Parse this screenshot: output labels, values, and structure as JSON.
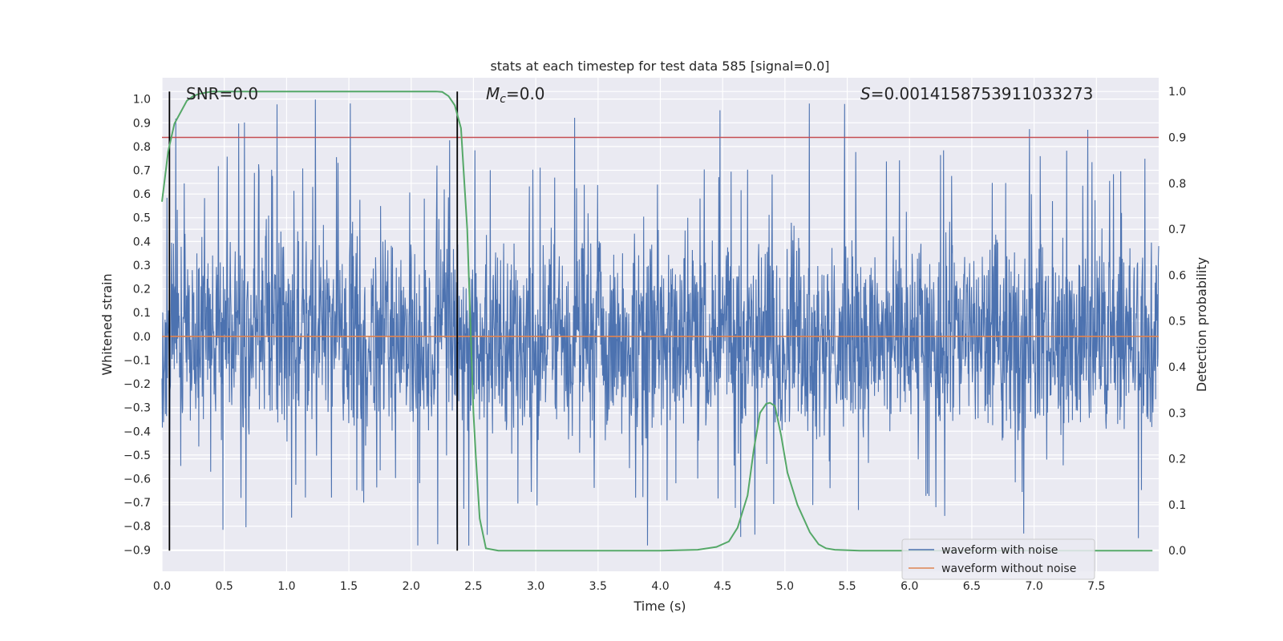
{
  "chart_data": {
    "type": "line",
    "title": "stats at each timestep for test data 585 [signal=0.0]",
    "xlabel": "Time (s)",
    "ylabel_left": "Whitened strain",
    "ylabel_right": "Detection probability",
    "xlim": [
      0,
      8
    ],
    "ylim_left": [
      -0.99,
      1.09
    ],
    "ylim_right": [
      -0.045,
      1.03
    ],
    "x_ticks": [
      "0.0",
      "0.5",
      "1.0",
      "1.5",
      "2.0",
      "2.5",
      "3.0",
      "3.5",
      "4.0",
      "4.5",
      "5.0",
      "5.5",
      "6.0",
      "6.5",
      "7.0",
      "7.5"
    ],
    "y_left_ticks": [
      "1.0",
      "0.9",
      "0.8",
      "0.7",
      "0.6",
      "0.5",
      "0.4",
      "0.3",
      "0.2",
      "0.1",
      "0.0",
      "−0.1",
      "−0.2",
      "−0.3",
      "−0.4",
      "−0.5",
      "−0.6",
      "−0.7",
      "−0.8",
      "−0.9"
    ],
    "y_right_ticks": [
      "1.0",
      "0.9",
      "0.8",
      "0.7",
      "0.6",
      "0.5",
      "0.4",
      "0.3",
      "0.2",
      "0.1",
      "0.0"
    ],
    "grid": true,
    "legend_position": "lower-right",
    "annotations": {
      "snr": "SNR=0.0",
      "mc_symbol": "M",
      "mc_sub": "c",
      "mc_value": "=0.0",
      "s_symbol": "S",
      "s_value": "=0.0014158753911033273"
    },
    "threshold_right": 0.9,
    "markers_x": [
      0.06,
      2.37
    ],
    "series": [
      {
        "name": "waveform with noise",
        "color": "#4c72b0",
        "axis": "left",
        "noise_band_low": -0.3,
        "noise_band_high": 0.3,
        "peak_max": 1.0,
        "peak_min": -0.9
      },
      {
        "name": "waveform without noise",
        "color": "#dd8452",
        "axis": "left",
        "x": [
          0,
          8
        ],
        "y": [
          0,
          0
        ]
      },
      {
        "name": "detection probability",
        "color": "#55a868",
        "axis": "right",
        "x": [
          0.0,
          0.05,
          0.1,
          0.15,
          0.2,
          0.25,
          0.3,
          0.4,
          0.6,
          1.0,
          1.5,
          2.0,
          2.2,
          2.25,
          2.3,
          2.35,
          2.4,
          2.45,
          2.5,
          2.52,
          2.55,
          2.6,
          2.7,
          3.0,
          3.5,
          4.0,
          4.3,
          4.45,
          4.55,
          4.62,
          4.7,
          4.75,
          4.8,
          4.85,
          4.88,
          4.92,
          4.97,
          5.02,
          5.1,
          5.2,
          5.27,
          5.33,
          5.4,
          5.6,
          6.0,
          7.0,
          7.95
        ],
        "y": [
          0.76,
          0.87,
          0.93,
          0.955,
          0.98,
          0.99,
          0.995,
          1.0,
          1.0,
          1.0,
          1.0,
          1.0,
          1.0,
          0.999,
          0.99,
          0.97,
          0.92,
          0.7,
          0.3,
          0.2,
          0.07,
          0.005,
          0.0,
          0.0,
          0.0,
          0.0,
          0.002,
          0.008,
          0.02,
          0.05,
          0.12,
          0.22,
          0.3,
          0.32,
          0.322,
          0.315,
          0.25,
          0.17,
          0.1,
          0.04,
          0.014,
          0.005,
          0.002,
          0.0,
          0.0,
          0.0,
          0.0
        ]
      }
    ]
  }
}
